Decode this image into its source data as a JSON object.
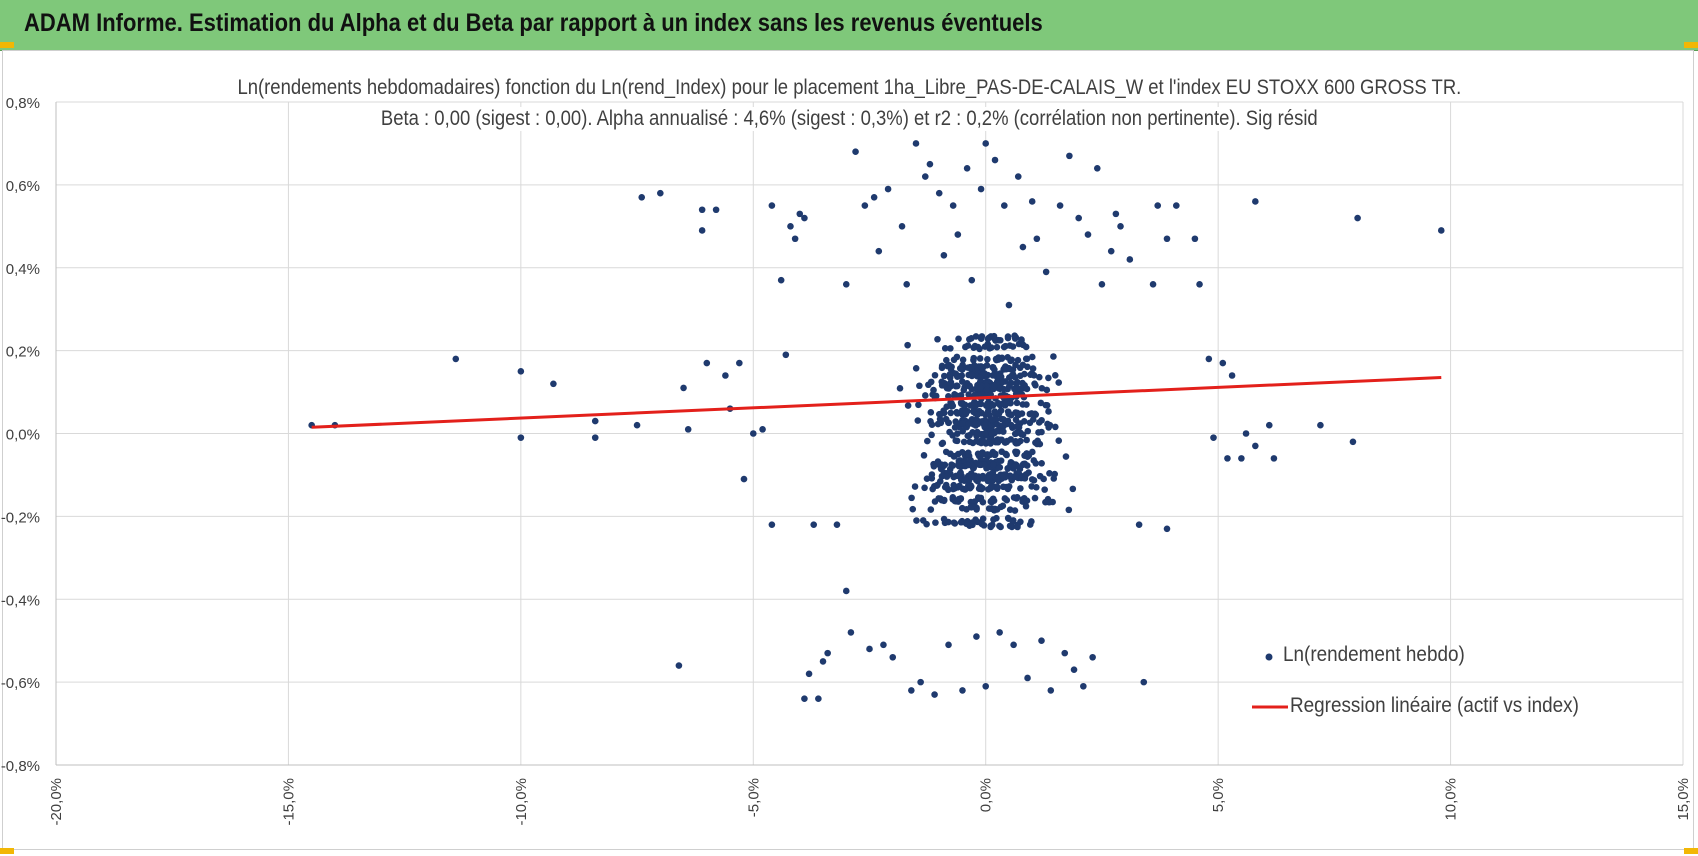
{
  "banner": {
    "title": "ADAM Informe. Estimation du Alpha et du Beta par rapport à un index sans les revenus éventuels"
  },
  "colors": {
    "banner": "#7fc87a",
    "points": "#1f3a6e",
    "regression": "#e3201b",
    "grid": "#d9d9d9",
    "corner": "#f2b705"
  },
  "chart_data": {
    "type": "scatter",
    "title": "Ln(rendements hebdomadaires) fonction du Ln(rend_Index) pour le placement 1ha_Libre_PAS-DE-CALAIS_W et l'index EU STOXX 600 GROSS TR.",
    "subtitle": "Beta : 0,00 (sigest : 0,00). Alpha annualisé : 4,6% (sigest : 0,3%) et r2 : 0,2% (corrélation non pertinente). Sig résid",
    "xlabel": "",
    "ylabel": "",
    "xlim": [
      -0.2,
      0.15
    ],
    "ylim": [
      -0.008,
      0.008
    ],
    "grid": true,
    "legend_position": "bottom-right",
    "x_ticks": [
      {
        "value": -0.2,
        "label": "-20,0%"
      },
      {
        "value": -0.15,
        "label": "-15,0%"
      },
      {
        "value": -0.1,
        "label": "-10,0%"
      },
      {
        "value": -0.05,
        "label": "-5,0%"
      },
      {
        "value": 0.0,
        "label": "0,0%"
      },
      {
        "value": 0.05,
        "label": "5,0%"
      },
      {
        "value": 0.1,
        "label": "10,0%"
      },
      {
        "value": 0.15,
        "label": "15,0%"
      }
    ],
    "y_ticks": [
      {
        "value": 0.008,
        "label": "0,8%"
      },
      {
        "value": 0.006,
        "label": "0,6%"
      },
      {
        "value": 0.004,
        "label": "0,4%"
      },
      {
        "value": 0.002,
        "label": "0,2%"
      },
      {
        "value": 0.0,
        "label": "0,0%"
      },
      {
        "value": -0.002,
        "label": "-0,2%"
      },
      {
        "value": -0.004,
        "label": "-0,4%"
      },
      {
        "value": -0.006,
        "label": "-0,6%"
      },
      {
        "value": -0.008,
        "label": "-0,8%"
      }
    ],
    "series": [
      {
        "name": "Ln(rendement hebdo)",
        "kind": "scatter",
        "points": [
          [
            -0.145,
            0.0002
          ],
          [
            -0.14,
            0.0002
          ],
          [
            -0.114,
            0.0018
          ],
          [
            -0.1,
            0.0015
          ],
          [
            -0.1,
            -0.0001
          ],
          [
            -0.093,
            0.0012
          ],
          [
            -0.084,
            0.0003
          ],
          [
            -0.084,
            -0.0001
          ],
          [
            -0.075,
            0.0002
          ],
          [
            -0.074,
            0.0057
          ],
          [
            -0.07,
            0.0058
          ],
          [
            -0.066,
            -0.0056
          ],
          [
            -0.065,
            0.0011
          ],
          [
            -0.064,
            0.0001
          ],
          [
            -0.061,
            0.0054
          ],
          [
            -0.061,
            0.0049
          ],
          [
            -0.06,
            0.0017
          ],
          [
            -0.058,
            0.0054
          ],
          [
            -0.056,
            0.0014
          ],
          [
            -0.055,
            0.0006
          ],
          [
            -0.053,
            0.0017
          ],
          [
            -0.052,
            -0.0011
          ],
          [
            -0.05,
            0.0
          ],
          [
            -0.048,
            0.0001
          ],
          [
            -0.046,
            0.0055
          ],
          [
            -0.046,
            -0.0022
          ],
          [
            -0.044,
            0.0037
          ],
          [
            -0.043,
            0.0019
          ],
          [
            -0.042,
            0.005
          ],
          [
            -0.041,
            0.0047
          ],
          [
            -0.04,
            0.0053
          ],
          [
            -0.039,
            0.0052
          ],
          [
            -0.039,
            -0.0064
          ],
          [
            -0.038,
            -0.0058
          ],
          [
            -0.037,
            -0.0022
          ],
          [
            -0.036,
            -0.0064
          ],
          [
            -0.035,
            -0.0055
          ],
          [
            -0.034,
            -0.0053
          ],
          [
            -0.032,
            -0.0022
          ],
          [
            -0.03,
            0.0036
          ],
          [
            -0.03,
            -0.0038
          ],
          [
            -0.029,
            -0.0048
          ],
          [
            -0.028,
            0.0068
          ],
          [
            -0.026,
            0.0055
          ],
          [
            -0.025,
            -0.0052
          ],
          [
            -0.024,
            0.0057
          ],
          [
            -0.023,
            0.0044
          ],
          [
            -0.022,
            -0.0051
          ],
          [
            -0.021,
            0.0059
          ],
          [
            -0.02,
            -0.0054
          ],
          [
            -0.018,
            0.005
          ],
          [
            -0.017,
            0.0036
          ],
          [
            -0.016,
            -0.0062
          ],
          [
            -0.015,
            0.007
          ],
          [
            -0.014,
            -0.006
          ],
          [
            -0.013,
            0.0062
          ],
          [
            -0.012,
            0.0065
          ],
          [
            -0.011,
            -0.0063
          ],
          [
            -0.01,
            0.0058
          ],
          [
            -0.009,
            0.0043
          ],
          [
            -0.008,
            -0.0051
          ],
          [
            -0.007,
            0.0055
          ],
          [
            -0.006,
            0.0048
          ],
          [
            -0.005,
            -0.0062
          ],
          [
            -0.004,
            0.0064
          ],
          [
            -0.003,
            0.0037
          ],
          [
            -0.002,
            -0.0049
          ],
          [
            -0.001,
            0.0059
          ],
          [
            0.0,
            0.007
          ],
          [
            0.0,
            -0.0061
          ],
          [
            0.002,
            0.0066
          ],
          [
            0.003,
            -0.0048
          ],
          [
            0.004,
            0.0055
          ],
          [
            0.005,
            0.0031
          ],
          [
            0.006,
            -0.0051
          ],
          [
            0.007,
            0.0062
          ],
          [
            0.008,
            0.0045
          ],
          [
            0.009,
            -0.0059
          ],
          [
            0.01,
            0.0056
          ],
          [
            0.011,
            0.0047
          ],
          [
            0.012,
            -0.005
          ],
          [
            0.013,
            0.0039
          ],
          [
            0.014,
            -0.0062
          ],
          [
            0.016,
            0.0055
          ],
          [
            0.017,
            -0.0053
          ],
          [
            0.018,
            0.0067
          ],
          [
            0.019,
            -0.0057
          ],
          [
            0.02,
            0.0052
          ],
          [
            0.021,
            -0.0061
          ],
          [
            0.022,
            0.0048
          ],
          [
            0.023,
            -0.0054
          ],
          [
            0.024,
            0.0064
          ],
          [
            0.025,
            0.0036
          ],
          [
            0.027,
            0.0044
          ],
          [
            0.028,
            0.0053
          ],
          [
            0.029,
            0.005
          ],
          [
            0.031,
            0.0042
          ],
          [
            0.033,
            -0.0022
          ],
          [
            0.034,
            -0.006
          ],
          [
            0.036,
            0.0036
          ],
          [
            0.037,
            0.0055
          ],
          [
            0.039,
            0.0047
          ],
          [
            0.039,
            -0.0023
          ],
          [
            0.041,
            0.0055
          ],
          [
            0.045,
            0.0047
          ],
          [
            0.046,
            0.0036
          ],
          [
            0.048,
            0.0018
          ],
          [
            0.049,
            -0.0001
          ],
          [
            0.051,
            0.0017
          ],
          [
            0.052,
            -0.0006
          ],
          [
            0.053,
            0.0014
          ],
          [
            0.055,
            -0.0006
          ],
          [
            0.056,
            0.0
          ],
          [
            0.058,
            0.0056
          ],
          [
            0.058,
            -0.0003
          ],
          [
            0.061,
            0.0002
          ],
          [
            0.062,
            -0.0006
          ],
          [
            0.072,
            0.0002
          ],
          [
            0.08,
            0.0052
          ],
          [
            0.079,
            -0.0002
          ],
          [
            0.098,
            0.0049
          ]
        ]
      },
      {
        "name": "Regression linéaire (actif vs index)",
        "kind": "line",
        "points": [
          [
            -0.145,
            0.00015
          ],
          [
            0.098,
            0.00135
          ]
        ]
      }
    ],
    "central_cluster": {
      "x_range": [
        -0.045,
        0.045
      ],
      "y_levels": [
        0.0023,
        0.0021,
        0.0018,
        0.0016,
        0.0014,
        0.0012,
        0.0011,
        0.0009,
        0.0007,
        0.0005,
        0.0003,
        0.0002,
        0.0,
        -0.0002,
        -0.0005,
        -0.0007,
        -0.0008,
        -0.001,
        -0.0011,
        -0.0013,
        -0.0016,
        -0.0018,
        -0.0021,
        -0.0022
      ]
    }
  },
  "legend": {
    "items": [
      {
        "label": "Ln(rendement hebdo)"
      },
      {
        "label": "Regression linéaire (actif vs index)"
      }
    ]
  }
}
